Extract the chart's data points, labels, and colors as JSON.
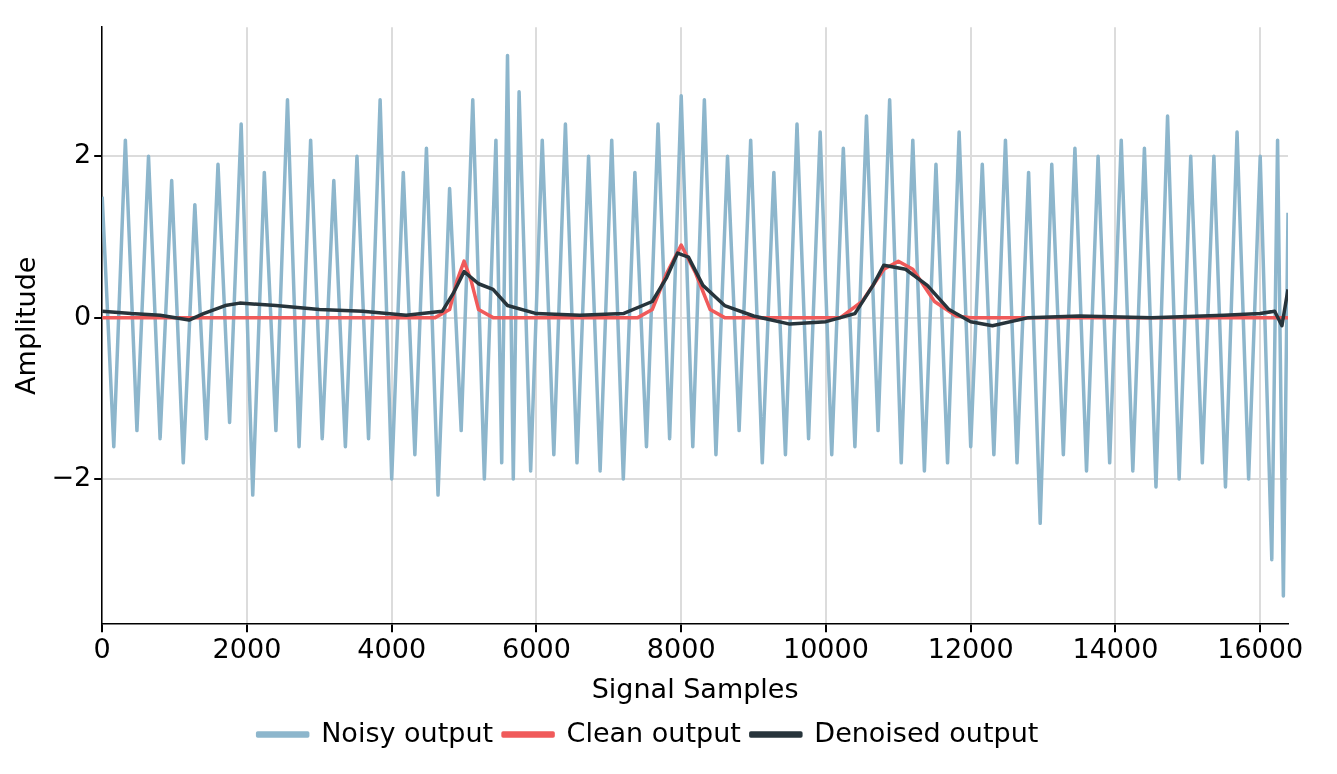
{
  "chart_data": {
    "type": "line",
    "xlabel": "Signal Samples",
    "ylabel": "Amplitude",
    "xlim": [
      0,
      16384
    ],
    "xticks": [
      0,
      2000,
      4000,
      6000,
      8000,
      10000,
      12000,
      14000,
      16000
    ],
    "ylim": [
      -3.8,
      3.6
    ],
    "yticks": [
      -2,
      0,
      2
    ],
    "grid": true,
    "legend": "bottom",
    "marker": "none",
    "series": [
      {
        "name": "Noisy output",
        "color": "#8db6cc",
        "x": [
          0,
          160,
          320,
          480,
          640,
          800,
          960,
          1120,
          1280,
          1440,
          1600,
          1760,
          1920,
          2080,
          2240,
          2400,
          2560,
          2720,
          2880,
          3040,
          3200,
          3360,
          3520,
          3680,
          3840,
          4000,
          4160,
          4320,
          4480,
          4640,
          4800,
          4960,
          5120,
          5280,
          5440,
          5520,
          5600,
          5680,
          5760,
          5920,
          6080,
          6240,
          6400,
          6560,
          6720,
          6880,
          7040,
          7200,
          7360,
          7520,
          7680,
          7840,
          8000,
          8160,
          8320,
          8480,
          8640,
          8800,
          8960,
          9120,
          9280,
          9440,
          9600,
          9760,
          9920,
          10080,
          10240,
          10400,
          10560,
          10720,
          10880,
          11040,
          11200,
          11360,
          11520,
          11680,
          11840,
          12000,
          12160,
          12320,
          12480,
          12640,
          12800,
          12960,
          13120,
          13280,
          13440,
          13600,
          13760,
          13920,
          14080,
          14240,
          14400,
          14560,
          14720,
          14880,
          15040,
          15200,
          15360,
          15520,
          15680,
          15840,
          16000,
          16160,
          16240,
          16320,
          16384
        ],
        "values": [
          1.5,
          -1.6,
          2.2,
          -1.4,
          2.0,
          -1.5,
          1.7,
          -1.8,
          1.4,
          -1.5,
          1.9,
          -1.3,
          2.4,
          -2.2,
          1.8,
          -1.4,
          2.7,
          -1.6,
          2.2,
          -1.5,
          1.7,
          -1.6,
          2.0,
          -1.5,
          2.7,
          -2.0,
          1.8,
          -1.7,
          2.1,
          -2.2,
          1.6,
          -1.4,
          2.7,
          -2.0,
          2.2,
          -1.8,
          3.25,
          -2.0,
          2.8,
          -1.9,
          2.2,
          -1.7,
          2.4,
          -1.8,
          2.0,
          -1.9,
          2.2,
          -2.0,
          1.8,
          -1.6,
          2.4,
          -1.5,
          2.75,
          -1.6,
          2.7,
          -1.7,
          2.0,
          -1.4,
          2.2,
          -1.8,
          1.8,
          -1.7,
          2.4,
          -1.5,
          2.3,
          -1.7,
          2.1,
          -1.6,
          2.5,
          -1.4,
          2.7,
          -1.8,
          2.2,
          -1.9,
          1.9,
          -1.8,
          2.3,
          -1.6,
          1.9,
          -1.7,
          2.2,
          -1.8,
          1.8,
          -2.55,
          1.9,
          -1.7,
          2.1,
          -1.9,
          2.0,
          -1.8,
          2.2,
          -1.9,
          2.1,
          -2.1,
          2.5,
          -2.0,
          2.0,
          -1.8,
          2.0,
          -2.1,
          2.3,
          -2.0,
          2.0,
          -3.0,
          2.2,
          -3.45,
          1.3
        ]
      },
      {
        "name": "Clean output",
        "color": "#f05a5a",
        "x": [
          0,
          4600,
          4800,
          4900,
          5000,
          5100,
          5200,
          5400,
          7400,
          7600,
          7800,
          8000,
          8200,
          8400,
          8600,
          10200,
          10500,
          10800,
          11000,
          11200,
          11500,
          11800,
          12000,
          16384
        ],
        "values": [
          0,
          0,
          0.1,
          0.45,
          0.7,
          0.45,
          0.1,
          0,
          0,
          0.1,
          0.55,
          0.9,
          0.55,
          0.1,
          0,
          0,
          0.2,
          0.6,
          0.7,
          0.6,
          0.2,
          0.02,
          0,
          0
        ]
      },
      {
        "name": "Denoised output",
        "color": "#27343b",
        "x": [
          0,
          400,
          800,
          1200,
          1400,
          1700,
          1900,
          2400,
          3000,
          3600,
          4200,
          4700,
          4850,
          5000,
          5200,
          5400,
          5600,
          6000,
          6600,
          7200,
          7600,
          7800,
          7950,
          8100,
          8300,
          8600,
          9000,
          9500,
          10000,
          10400,
          10650,
          10800,
          11100,
          11400,
          11700,
          12000,
          12300,
          12800,
          13500,
          14500,
          15500,
          16000,
          16200,
          16300,
          16384
        ],
        "values": [
          0.08,
          0.05,
          0.03,
          -0.03,
          0.05,
          0.15,
          0.18,
          0.15,
          0.1,
          0.08,
          0.03,
          0.08,
          0.3,
          0.57,
          0.42,
          0.35,
          0.15,
          0.05,
          0.03,
          0.05,
          0.2,
          0.5,
          0.8,
          0.75,
          0.4,
          0.15,
          0.02,
          -0.08,
          -0.05,
          0.05,
          0.4,
          0.65,
          0.6,
          0.4,
          0.1,
          -0.05,
          -0.1,
          0.0,
          0.02,
          0.0,
          0.03,
          0.05,
          0.08,
          -0.1,
          0.35
        ]
      }
    ]
  }
}
